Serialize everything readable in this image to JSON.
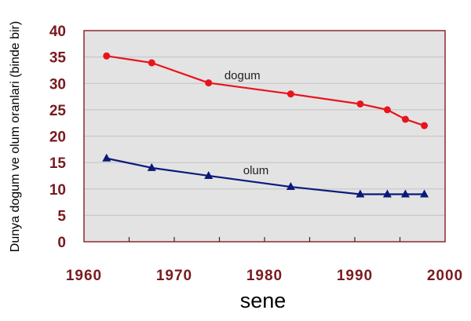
{
  "chart_data": {
    "type": "line",
    "title": "",
    "xlabel": "sene",
    "ylabel": "Dunya dogum ve olum oranlari (binde bir)",
    "xlim": [
      1960,
      2000
    ],
    "ylim": [
      0,
      40
    ],
    "xticks": [
      1960,
      1970,
      1980,
      1990,
      2000
    ],
    "yticks": [
      0,
      5,
      10,
      15,
      20,
      25,
      30,
      35,
      40
    ],
    "grid": "horizontal",
    "legend": "inline labels",
    "x": [
      1962.5,
      1967.5,
      1973.8,
      1982.9,
      1990.6,
      1993.6,
      1995.6,
      1997.7
    ],
    "series": [
      {
        "name": "dogum",
        "color": "#e8141c",
        "marker": "circle",
        "values": [
          35.2,
          33.9,
          30.1,
          28.0,
          26.1,
          25.0,
          23.2,
          22.0
        ]
      },
      {
        "name": "olum",
        "color": "#0a1a7a",
        "marker": "triangle",
        "values": [
          15.8,
          14.0,
          12.5,
          10.4,
          9.0,
          9.0,
          9.0,
          9.0
        ]
      }
    ],
    "annotations": [
      {
        "text": "dogum",
        "x": 1976.5,
        "y": 31.5
      },
      {
        "text": "olum",
        "x": 1978,
        "y": 13.5
      }
    ],
    "colors": {
      "plot_bg": "#e3e3e3",
      "frame": "#8b2a2a",
      "grid": "#c8c8c8",
      "tick_text": "#7a1a1f"
    }
  }
}
